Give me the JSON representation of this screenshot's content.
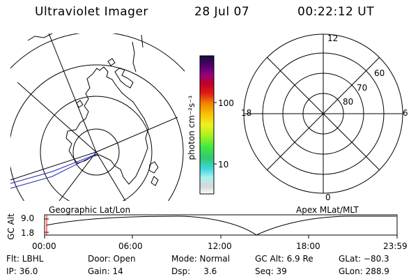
{
  "header": {
    "instrument": "Ultraviolet Imager",
    "date": "28 Jul 07",
    "time": "00:22:12 UT"
  },
  "colorbar": {
    "unit_label": "photon cm⁻²s⁻¹",
    "ticks": [
      "100",
      "10"
    ]
  },
  "geo_panel": {
    "label": "Geographic Lat/Lon"
  },
  "apex_panel": {
    "label": "Apex MLat/MLT",
    "mlt_labels": {
      "top": "12",
      "left": "18",
      "right": "6",
      "bottom": "0"
    },
    "mlat_labels": [
      "60",
      "70",
      "80"
    ]
  },
  "timeline": {
    "ylabel": "GC Alt",
    "yticks": [
      "9.0",
      "1.8"
    ],
    "xticks": [
      "00:00",
      "06:00",
      "12:00",
      "18:00",
      "23:59"
    ]
  },
  "info": {
    "filter": "Flt: LBHL",
    "door": "Door: Open",
    "mode": "Mode: Normal",
    "gc_alt": "GC Alt: 6.9 Re",
    "glat": "GLat: −80.3",
    "ip": "IP: 36.0",
    "gain": "Gain: 14",
    "dsp": "Dsp:     3.6",
    "seq": "Seq: 39",
    "glon": "GLon: 288.9"
  },
  "colors": {
    "foreground": "#000000",
    "timeline_marker": "#ff0000",
    "orbit_track": "#2020b0"
  }
}
